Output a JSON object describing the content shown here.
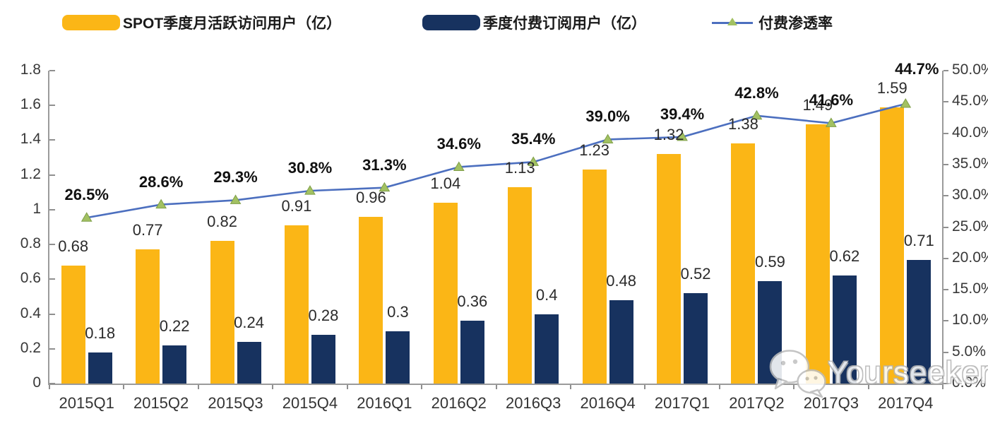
{
  "chart_data": {
    "type": "bar",
    "subtype": "bar-line-combo",
    "categories": [
      "2015Q1",
      "2015Q2",
      "2015Q3",
      "2015Q4",
      "2016Q1",
      "2016Q2",
      "2016Q3",
      "2016Q4",
      "2017Q1",
      "2017Q2",
      "2017Q3",
      "2017Q4"
    ],
    "series": [
      {
        "name": "SPOT季度月活跃访问用户（亿）",
        "type": "bar",
        "axis": "left",
        "color": "#FBB616",
        "values": [
          0.68,
          0.77,
          0.82,
          0.91,
          0.96,
          1.04,
          1.13,
          1.23,
          1.32,
          1.38,
          1.49,
          1.59
        ],
        "labels": [
          "0.68",
          "0.77",
          "0.82",
          "0.91",
          "0.96",
          "1.04",
          "1.13",
          "1.23",
          "1.32",
          "1.38",
          "1.49",
          "1.59"
        ]
      },
      {
        "name": "季度付费订阅用户（亿）",
        "type": "bar",
        "axis": "left",
        "color": "#17325F",
        "values": [
          0.18,
          0.22,
          0.24,
          0.28,
          0.3,
          0.36,
          0.4,
          0.48,
          0.52,
          0.59,
          0.62,
          0.71
        ],
        "labels": [
          "0.18",
          "0.22",
          "0.24",
          "0.28",
          "0.3",
          "0.36",
          "0.4",
          "0.48",
          "0.52",
          "0.59",
          "0.62",
          "0.71"
        ]
      },
      {
        "name": "付费渗透率",
        "type": "line",
        "axis": "right",
        "color": "#4C6FBF",
        "marker": "triangle",
        "marker_color": "#A2C162",
        "marker_edge_color": "#7F9F48",
        "values": [
          26.5,
          28.6,
          29.3,
          30.8,
          31.3,
          34.6,
          35.4,
          39.0,
          39.4,
          42.8,
          41.6,
          44.7
        ],
        "labels": [
          "26.5%",
          "28.6%",
          "29.3%",
          "30.8%",
          "31.3%",
          "34.6%",
          "35.4%",
          "39.0%",
          "39.4%",
          "42.8%",
          "41.6%",
          "44.7%"
        ]
      }
    ],
    "left_axis": {
      "min": 0,
      "max": 1.8,
      "step": 0.2,
      "tick_labels": [
        "0",
        "0.2",
        "0.4",
        "0.6",
        "0.8",
        "1",
        "1.2",
        "1.4",
        "1.6",
        "1.8"
      ]
    },
    "right_axis": {
      "min": 0,
      "max": 50,
      "step": 5,
      "tick_labels": [
        "0.0%",
        "5.0%",
        "10.0%",
        "15.0%",
        "20.0%",
        "25.0%",
        "30.0%",
        "35.0%",
        "40.0%",
        "45.0%",
        "50.0%"
      ]
    },
    "grid": false,
    "legend_position": "top"
  },
  "watermark": {
    "text": "Yourseeker",
    "icon": "wechat-icon"
  }
}
